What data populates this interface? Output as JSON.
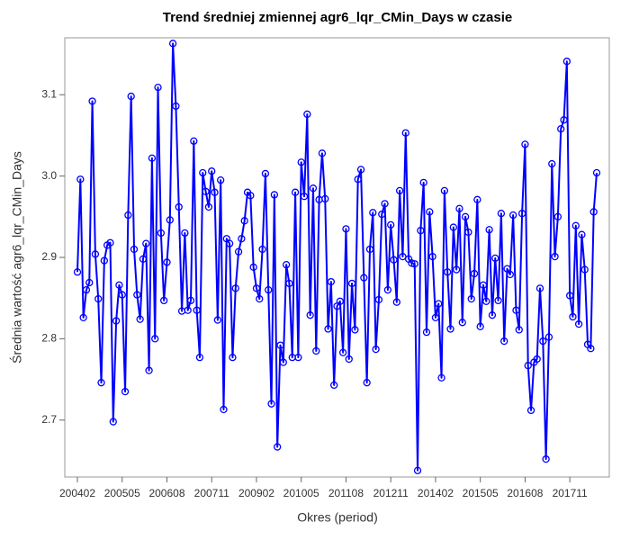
{
  "chart_data": {
    "type": "line",
    "title": "Trend średniej zmiennej agr6_lqr_CMin_Days w czasie",
    "x_label": "Okres (period)",
    "y_label": "Średnia wartość agr6_lqr_CMin_Days",
    "categories": [
      "200402",
      null,
      null,
      null,
      null,
      null,
      null,
      null,
      null,
      null,
      null,
      null,
      null,
      null,
      null,
      "200505",
      null,
      null,
      null,
      null,
      null,
      null,
      null,
      null,
      null,
      null,
      null,
      null,
      null,
      null,
      "200608",
      null,
      null,
      null,
      null,
      null,
      null,
      null,
      null,
      null,
      null,
      null,
      null,
      null,
      null,
      "200711",
      null,
      null,
      null,
      null,
      null,
      null,
      null,
      null,
      null,
      null,
      null,
      null,
      null,
      null,
      "200902",
      null,
      null,
      null,
      null,
      null,
      null,
      null,
      null,
      null,
      null,
      null,
      null,
      null,
      null,
      "201005",
      null,
      null,
      null,
      null,
      null,
      null,
      null,
      null,
      null,
      null,
      null,
      null,
      null,
      null,
      "201108",
      null,
      null,
      null,
      null,
      null,
      null,
      null,
      null,
      null,
      null,
      null,
      null,
      null,
      null,
      "201211",
      null,
      null,
      null,
      null,
      null,
      null,
      null,
      null,
      null,
      null,
      null,
      null,
      null,
      null,
      "201402",
      null,
      null,
      null,
      null,
      null,
      null,
      null,
      null,
      null,
      null,
      null,
      null,
      null,
      null,
      "201505",
      null,
      null,
      null,
      null,
      null,
      null,
      null,
      null,
      null,
      null,
      null,
      null,
      null,
      null,
      "201608",
      null,
      null,
      null,
      null,
      null,
      null,
      null,
      null,
      null,
      null,
      null,
      null,
      null,
      null,
      "201711",
      null,
      null,
      null,
      null,
      null,
      null,
      null,
      null,
      null
    ],
    "values": [
      2.882,
      2.996,
      2.826,
      2.86,
      2.869,
      3.092,
      2.904,
      2.849,
      2.746,
      2.896,
      2.915,
      2.918,
      2.698,
      2.822,
      2.866,
      2.854,
      2.735,
      2.952,
      3.098,
      2.91,
      2.854,
      2.824,
      2.898,
      2.917,
      2.761,
      3.022,
      2.8,
      3.109,
      2.93,
      2.847,
      2.894,
      2.946,
      3.163,
      3.086,
      2.962,
      2.834,
      2.93,
      2.835,
      2.847,
      3.043,
      2.835,
      2.777,
      3.004,
      2.981,
      2.962,
      3.006,
      2.98,
      2.823,
      2.995,
      2.713,
      2.923,
      2.917,
      2.777,
      2.862,
      2.907,
      2.923,
      2.945,
      2.98,
      2.976,
      2.888,
      2.862,
      2.849,
      2.91,
      3.003,
      2.86,
      2.72,
      2.977,
      2.667,
      2.792,
      2.771,
      2.891,
      2.868,
      2.777,
      2.98,
      2.777,
      3.017,
      2.975,
      3.076,
      2.829,
      2.985,
      2.785,
      2.971,
      3.028,
      2.972,
      2.812,
      2.87,
      2.743,
      2.84,
      2.846,
      2.783,
      2.935,
      2.775,
      2.868,
      2.811,
      2.996,
      3.008,
      2.875,
      2.746,
      2.91,
      2.955,
      2.787,
      2.848,
      2.953,
      2.966,
      2.86,
      2.94,
      2.897,
      2.845,
      2.982,
      2.901,
      3.053,
      2.898,
      2.893,
      2.892,
      2.638,
      2.933,
      2.992,
      2.808,
      2.956,
      2.901,
      2.826,
      2.843,
      2.752,
      2.982,
      2.882,
      2.812,
      2.937,
      2.885,
      2.96,
      2.82,
      2.95,
      2.931,
      2.849,
      2.88,
      2.971,
      2.815,
      2.866,
      2.846,
      2.934,
      2.829,
      2.899,
      2.847,
      2.954,
      2.797,
      2.886,
      2.879,
      2.952,
      2.835,
      2.811,
      2.954,
      3.039,
      2.767,
      2.712,
      2.771,
      2.775,
      2.862,
      2.797,
      2.652,
      2.802,
      3.015,
      2.901,
      2.95,
      3.058,
      3.069,
      3.141,
      2.853,
      2.827,
      2.939,
      2.818,
      2.928,
      2.885,
      2.793,
      2.788,
      2.956,
      3.004
    ],
    "color": "#0000ff",
    "ylim": [
      2.63,
      3.17
    ],
    "yticks": [
      2.7,
      2.8,
      2.9,
      {
        "value": 3,
        "label": "3.0"
      },
      3.1
    ],
    "grid": false
  }
}
